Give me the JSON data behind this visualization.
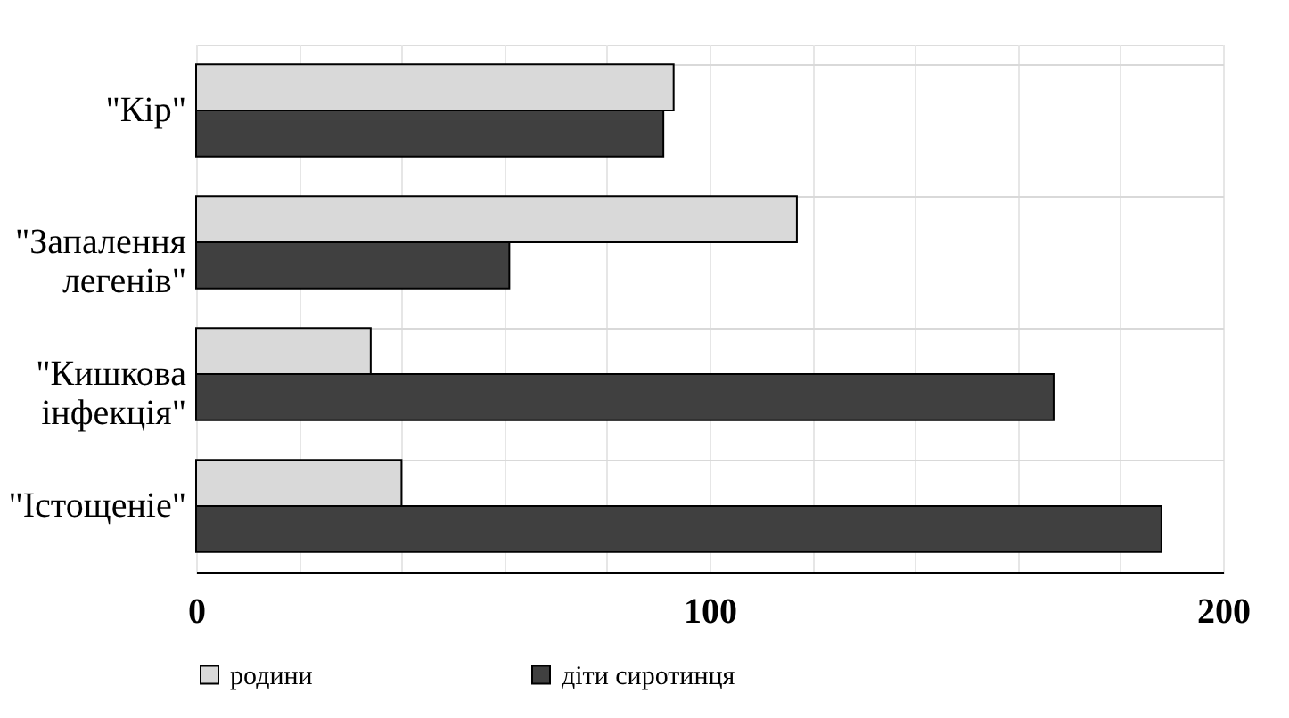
{
  "chart_data": {
    "type": "bar",
    "orientation": "horizontal",
    "categories": [
      "\"Кір\"",
      "\"Запалення легенів\"",
      "\"Кишкова інфекція\"",
      "\"Істощеніе\""
    ],
    "series": [
      {
        "name": "родини",
        "color": "#d9d9d9",
        "values": [
          93,
          117,
          34,
          40
        ]
      },
      {
        "name": "діти сиротинця",
        "color": "#404040",
        "values": [
          91,
          61,
          167,
          188
        ]
      }
    ],
    "xlim": [
      0,
      200
    ],
    "xticks": [
      0,
      {
        "value": 20,
        "label": null
      },
      {
        "value": 40,
        "label": null
      },
      {
        "value": 60,
        "label": null
      },
      {
        "value": 80,
        "label": null
      },
      100,
      {
        "value": 120,
        "label": null
      },
      {
        "value": 140,
        "label": null
      },
      {
        "value": 160,
        "label": null
      },
      {
        "value": 180,
        "label": null
      },
      200
    ],
    "grid": true,
    "legend": "bottom"
  }
}
